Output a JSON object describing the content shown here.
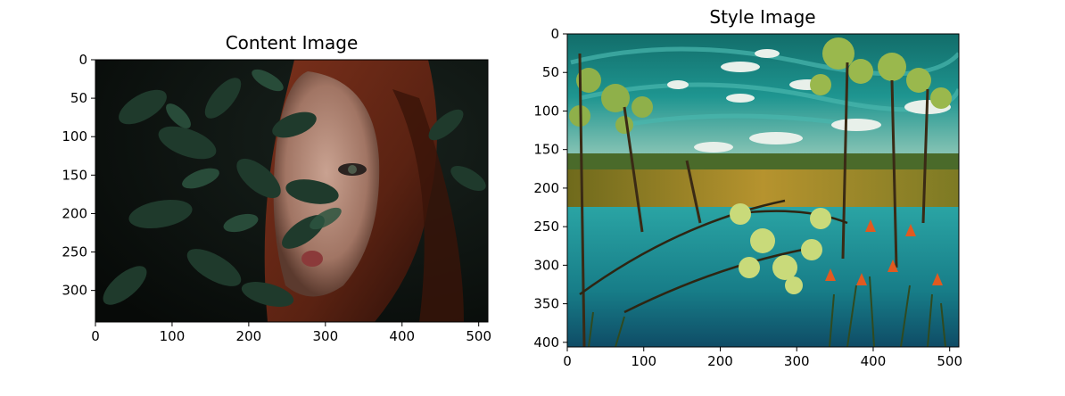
{
  "chart_data": [
    {
      "type": "image",
      "title": "Content Image",
      "x_ticks": [
        0,
        100,
        200,
        300,
        400,
        500
      ],
      "y_ticks": [
        0,
        50,
        100,
        150,
        200,
        250,
        300
      ],
      "xlim": [
        0,
        512
      ],
      "ylim": [
        341,
        0
      ],
      "image_subject": "woman with red hair partially hidden behind dark green leaves",
      "palette": {
        "dark": "#0f1512",
        "leaf": "#1f3a2c",
        "hair": "#6e2a17",
        "skin": "#c9a291"
      }
    },
    {
      "type": "image",
      "title": "Style Image",
      "x_ticks": [
        0,
        100,
        200,
        300,
        400,
        500
      ],
      "y_ticks": [
        0,
        50,
        100,
        150,
        200,
        250,
        300,
        350,
        400
      ],
      "xlim": [
        0,
        512
      ],
      "ylim": [
        406,
        0
      ],
      "image_subject": "painted landscape: teal sky with white clouds, trees, golden lake bank, turquoise water, plants with orange flowers",
      "palette": {
        "sky": "#1e8c8a",
        "cloud": "#e8f0ea",
        "bank": "#a88a2a",
        "water": "#1f8c95",
        "leaf": "#8fb04a",
        "flower": "#e05a20"
      }
    }
  ]
}
